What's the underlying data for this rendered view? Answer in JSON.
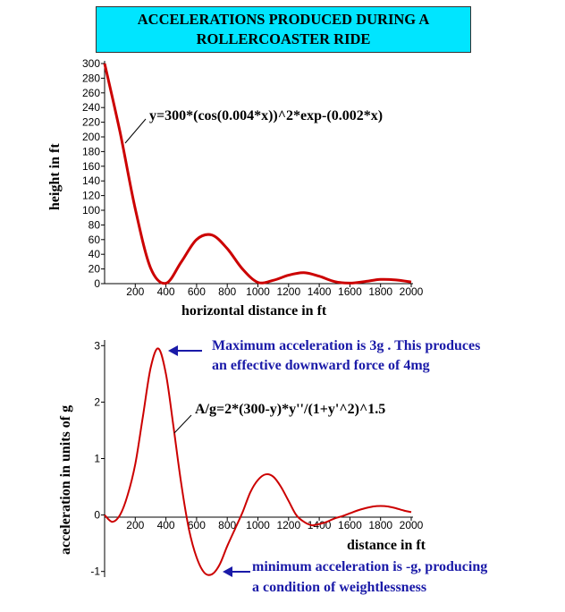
{
  "title": {
    "line1": "ACCELERATIONS PRODUCED DURING A",
    "line2": "ROLLERCOASTER RIDE",
    "background": "#00e5ff"
  },
  "chart_data": [
    {
      "type": "line",
      "function": "y=300*(cos(0.004*x))^2*exp-(0.002*x)",
      "xlabel": "horizontal distance in ft",
      "ylabel": "height in ft",
      "xlim": [
        0,
        2000
      ],
      "ylim": [
        0,
        300
      ],
      "xticks": [
        200,
        400,
        600,
        800,
        1000,
        1200,
        1400,
        1600,
        1800,
        2000
      ],
      "yticks": [
        0,
        20,
        40,
        60,
        80,
        100,
        120,
        140,
        160,
        180,
        200,
        220,
        240,
        260,
        280,
        300
      ],
      "line_color": "#cc0000",
      "x": [
        0,
        100,
        200,
        300,
        400,
        500,
        600,
        700,
        800,
        900,
        1000,
        1100,
        1200,
        1300,
        1400,
        1500,
        1600,
        1700,
        1800,
        1900,
        2000
      ],
      "y": [
        300,
        207.1,
        101.9,
        21.5,
        0.5,
        29.6,
        60.1,
        66.2,
        47.7,
        19.7,
        1.7,
        4.5,
        11.5,
        14.9,
        10.1,
        2.8,
        0.7,
        2.9,
        5.7,
        5.0,
        2.2
      ]
    },
    {
      "type": "line",
      "function": "A/g=2*(300-y)*y''/(1+y'^2)^1.5",
      "xlabel": "distance in ft",
      "ylabel": "acceleration in units of g",
      "xlim": [
        0,
        2000
      ],
      "ylim": [
        -1.1,
        3.1
      ],
      "xticks": [
        200,
        400,
        600,
        800,
        1000,
        1200,
        1400,
        1600,
        1800,
        2000
      ],
      "yticks": [
        -1,
        0,
        1,
        2,
        3
      ],
      "line_color": "#cc0000",
      "x": [
        0,
        50,
        100,
        150,
        200,
        250,
        300,
        350,
        400,
        450,
        500,
        550,
        600,
        650,
        700,
        750,
        800,
        850,
        900,
        950,
        1000,
        1050,
        1100,
        1150,
        1200,
        1250,
        1300,
        1350,
        1400,
        1450,
        1500,
        1550,
        1600,
        1650,
        1700,
        1750,
        1800,
        1850,
        1900,
        1950,
        2000
      ],
      "y": [
        0,
        -0.12,
        0,
        0.35,
        0.9,
        1.75,
        2.6,
        2.95,
        2.5,
        1.55,
        0.55,
        -0.25,
        -0.75,
        -1.02,
        -1.05,
        -0.88,
        -0.55,
        -0.25,
        0.05,
        0.4,
        0.62,
        0.72,
        0.68,
        0.5,
        0.25,
        0,
        -0.12,
        -0.18,
        -0.16,
        -0.12,
        -0.06,
        -0.02,
        0.03,
        0.08,
        0.12,
        0.15,
        0.16,
        0.15,
        0.12,
        0.08,
        0.05
      ]
    }
  ],
  "annotations": {
    "max_line1": "Maximum acceleration is 3g . This produces",
    "max_line2": "an effective downward force of 4mg",
    "min_line1": "minimum acceleration is -g, producing",
    "min_line2": "a condition of weightlessness",
    "color": "#1a1aa8"
  }
}
